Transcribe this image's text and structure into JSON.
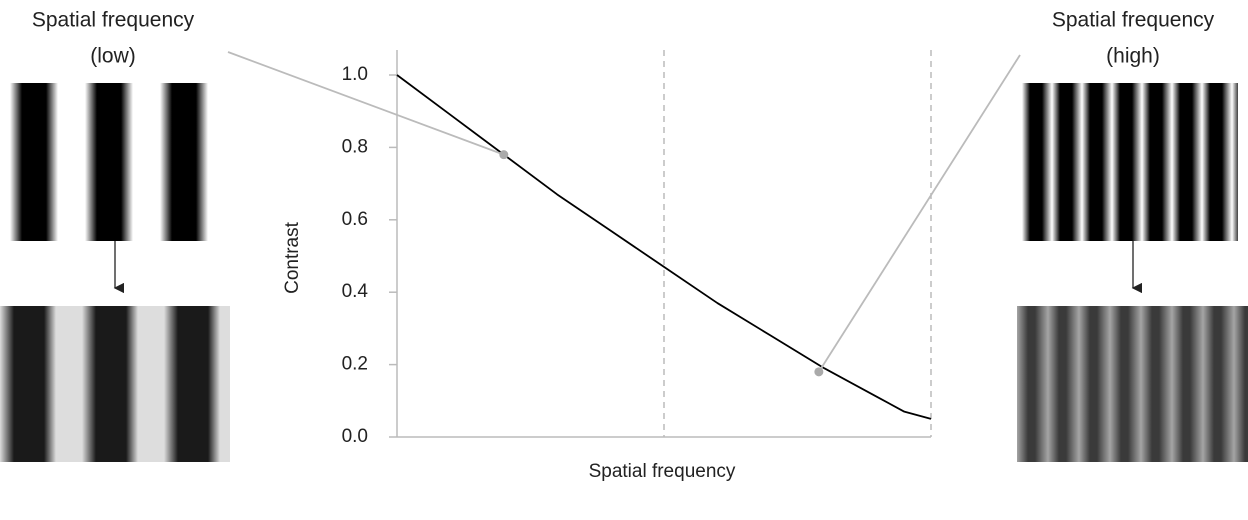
{
  "chart_data": {
    "type": "line",
    "x_label": "Spatial frequency",
    "y_label": "Contrast",
    "x": [
      0,
      0.1,
      0.2,
      0.3,
      0.4,
      0.5,
      0.6,
      0.7,
      0.8,
      0.9,
      0.95,
      1.0
    ],
    "values": [
      1.0,
      0.89,
      0.78,
      0.67,
      0.57,
      0.47,
      0.37,
      0.28,
      0.19,
      0.11,
      0.07,
      0.05
    ],
    "color": "#000000",
    "xlim": [
      0,
      1.0
    ],
    "ylim": [
      0,
      1.0
    ],
    "yticks": [
      {
        "value": 0,
        "label": "0.0"
      },
      0.2,
      0.4,
      0.6,
      0.8,
      {
        "value": 1,
        "label": "1.0"
      }
    ],
    "vlines": [
      0.5,
      1.0
    ],
    "callouts": [
      {
        "x": 0.2,
        "y": 0.78,
        "side": "left",
        "label_lines": [
          "Spatial frequency",
          "(low)"
        ]
      },
      {
        "x": 0.79,
        "y": 0.18,
        "side": "right",
        "label_lines": [
          "Spatial frequency",
          "(high)"
        ]
      }
    ]
  }
}
